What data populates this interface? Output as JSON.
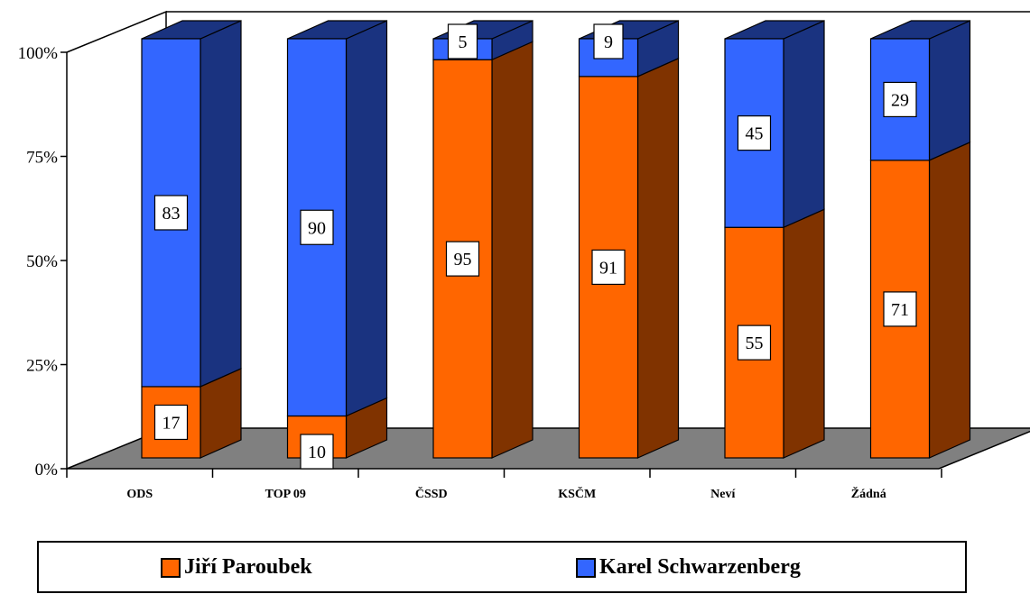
{
  "chart_data": {
    "type": "bar",
    "stacked": true,
    "percent_stacked": true,
    "three_d": true,
    "categories": [
      "ODS",
      "TOP 09",
      "ČSSD",
      "KSČM",
      "Neví",
      "Žádná"
    ],
    "series": [
      {
        "name": "Jiří Paroubek",
        "values": [
          17,
          10,
          95,
          91,
          55,
          71
        ],
        "color": "#ff6600",
        "side_color": "#803300"
      },
      {
        "name": "Karel Schwarzenberg",
        "values": [
          83,
          90,
          5,
          9,
          45,
          29
        ],
        "color": "#3366ff",
        "side_color": "#1a3380"
      }
    ],
    "yticks": [
      "0%",
      "25%",
      "50%",
      "75%",
      "100%"
    ],
    "ylim": [
      0,
      100
    ],
    "floor_color": "#808080",
    "legend_position": "bottom",
    "title": "",
    "xlabel": "",
    "ylabel": ""
  }
}
